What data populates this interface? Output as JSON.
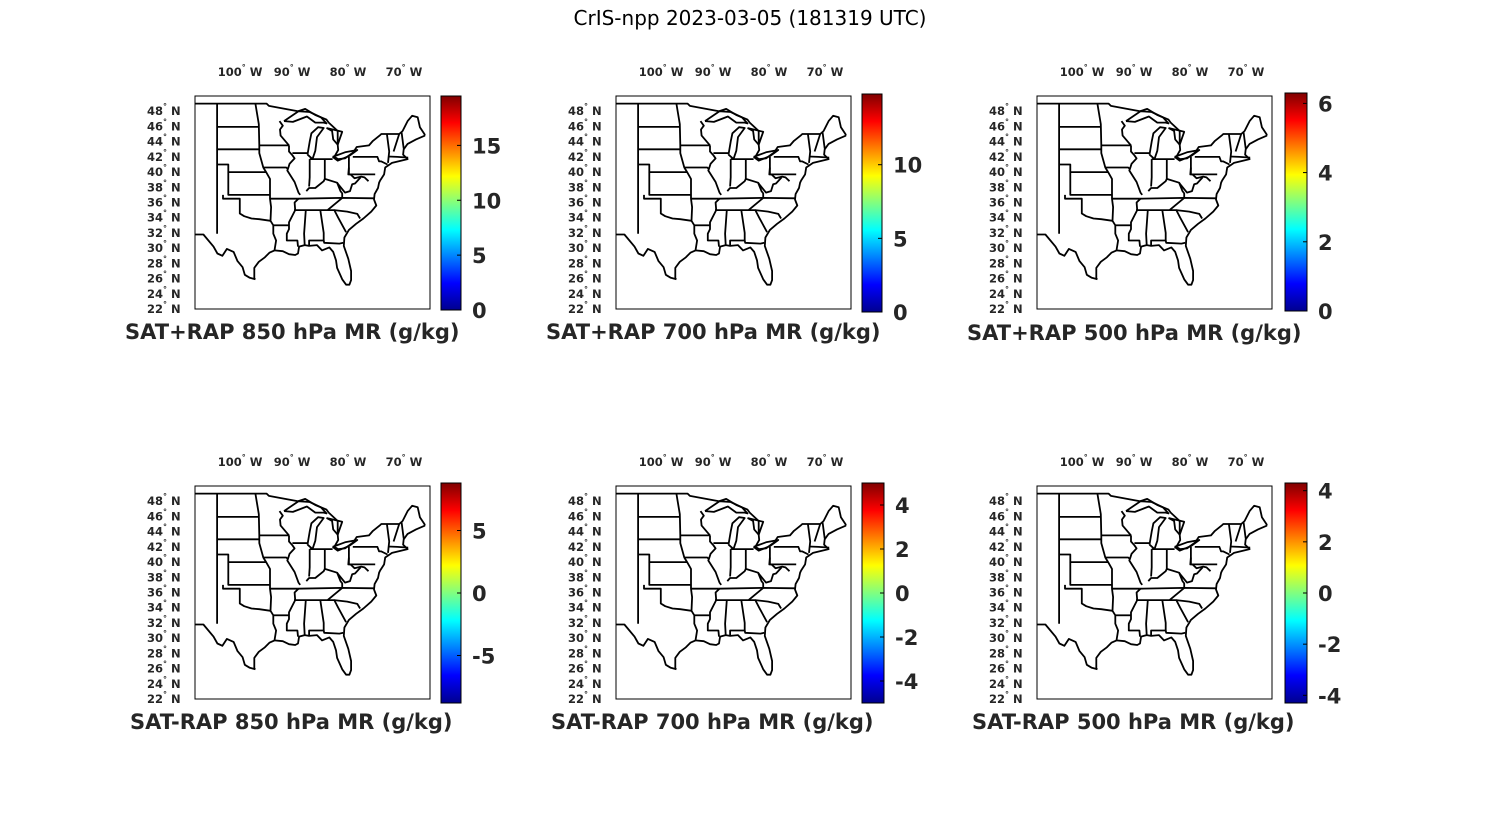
{
  "title": "CrIS-npp 2023-03-05 (181319 UTC)",
  "lon_labels": [
    {
      "deg": "100",
      "hemi": "W",
      "lon": -100
    },
    {
      "deg": "90",
      "hemi": "W",
      "lon": -90
    },
    {
      "deg": "80",
      "hemi": "W",
      "lon": -80
    },
    {
      "deg": "70",
      "hemi": "W",
      "lon": -70
    }
  ],
  "lat_labels": [
    {
      "deg": "48",
      "hemi": "N",
      "lat": 48
    },
    {
      "deg": "46",
      "hemi": "N",
      "lat": 46
    },
    {
      "deg": "44",
      "hemi": "N",
      "lat": 44
    },
    {
      "deg": "42",
      "hemi": "N",
      "lat": 42
    },
    {
      "deg": "40",
      "hemi": "N",
      "lat": 40
    },
    {
      "deg": "38",
      "hemi": "N",
      "lat": 38
    },
    {
      "deg": "36",
      "hemi": "N",
      "lat": 36
    },
    {
      "deg": "34",
      "hemi": "N",
      "lat": 34
    },
    {
      "deg": "32",
      "hemi": "N",
      "lat": 32
    },
    {
      "deg": "30",
      "hemi": "N",
      "lat": 30
    },
    {
      "deg": "28",
      "hemi": "N",
      "lat": 28
    },
    {
      "deg": "26",
      "hemi": "N",
      "lat": 26
    },
    {
      "deg": "24",
      "hemi": "N",
      "lat": 24
    },
    {
      "deg": "22",
      "hemi": "N",
      "lat": 22
    }
  ],
  "colormap": "jet",
  "colormap_stops": [
    "#00008f",
    "#0000ff",
    "#0080ff",
    "#00ffff",
    "#80ff80",
    "#ffff00",
    "#ff8000",
    "#ff0000",
    "#800000"
  ],
  "panels": [
    {
      "caption": "SAT+RAP 850 hPa MR (g/kg)",
      "clim": [
        0,
        19.5
      ],
      "ticks": [
        "0",
        "5",
        "10",
        "15"
      ],
      "tick_values": [
        0,
        5,
        10,
        15
      ]
    },
    {
      "caption": "SAT+RAP 700 hPa MR (g/kg)",
      "clim": [
        0,
        14.8
      ],
      "ticks": [
        "0",
        "5",
        "10"
      ],
      "tick_values": [
        0,
        5,
        10
      ]
    },
    {
      "caption": "SAT+RAP 500 hPa MR (g/kg)",
      "clim": [
        0,
        6.3
      ],
      "ticks": [
        "0",
        "2",
        "4",
        "6"
      ],
      "tick_values": [
        0,
        2,
        4,
        6
      ]
    },
    {
      "caption": "SAT-RAP 850 hPa MR (g/kg)",
      "clim": [
        -8.8,
        8.8
      ],
      "ticks": [
        "-5",
        "0",
        "5"
      ],
      "tick_values": [
        -5,
        0,
        5
      ]
    },
    {
      "caption": "SAT-RAP 700 hPa MR (g/kg)",
      "clim": [
        -5,
        5
      ],
      "ticks": [
        "-4",
        "-2",
        "0",
        "2",
        "4"
      ],
      "tick_values": [
        -4,
        -2,
        0,
        2,
        4
      ]
    },
    {
      "caption": "SAT-RAP 500 hPa MR (g/kg)",
      "clim": [
        -4.3,
        4.3
      ],
      "ticks": [
        "-4",
        "-2",
        "0",
        "2",
        "4"
      ],
      "tick_values": [
        -4,
        -2,
        0,
        2,
        4
      ]
    }
  ]
}
